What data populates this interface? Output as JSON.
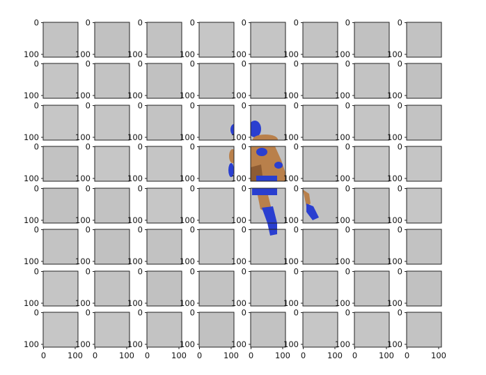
{
  "figure": {
    "rows": 8,
    "cols": 8,
    "y_tick_labels": [
      "0",
      "100"
    ],
    "x_tick_labels": [
      "0",
      "100"
    ],
    "tile_gray": "#c4c4c4",
    "frame_color": "#222222",
    "figure_colors": {
      "suit_blue": "#2a3fd0",
      "skin_orange": "#b9804b",
      "skin_shadow": "#8e5c33"
    }
  }
}
